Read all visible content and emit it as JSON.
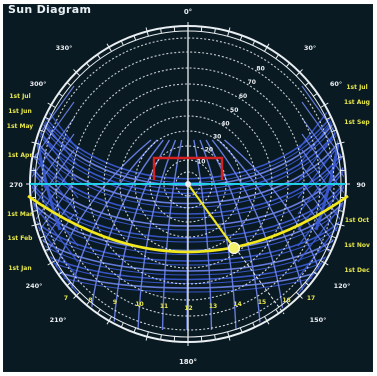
{
  "header": {
    "title": "Sun Diagram"
  },
  "colors": {
    "background": "#0a1a22",
    "grid": "#e9eef2",
    "sunpaths": "#3b5bd6",
    "sunpaths_light": "#6f86f0",
    "horizon": "#1fd0e6",
    "current_path": "#f2e81c",
    "marker": "#f2f06a",
    "building": "#d42222",
    "label": "#e7e84a"
  },
  "diagram": {
    "altitude_rings_deg": [
      10,
      20,
      30,
      40,
      50,
      60,
      70,
      80
    ],
    "outer_ring_labels": {
      "north": "0°",
      "east": "90°",
      "south": "180°",
      "west": "270°"
    },
    "azimuth_labels_left": [
      "330°",
      "300°",
      "240°",
      "210°"
    ],
    "azimuth_labels_right": [
      "30°",
      "60°",
      "120°",
      "150°"
    ],
    "date_labels_left": [
      "1st Jul",
      "1st Jun",
      "1st May",
      "1st Apr",
      "1st Mar",
      "1st Feb",
      "1st Jan"
    ],
    "date_labels_right": [
      "1st Jul",
      "1st Aug",
      "1st Sep",
      "1st Oct",
      "1st Nov",
      "1st Dec"
    ],
    "bottom_hour_labels": [
      "7",
      "8",
      "9",
      "10",
      "11",
      "12",
      "13",
      "14",
      "15",
      "16",
      "17"
    ],
    "horizon_left_label": "270",
    "horizon_right_label": "90"
  }
}
